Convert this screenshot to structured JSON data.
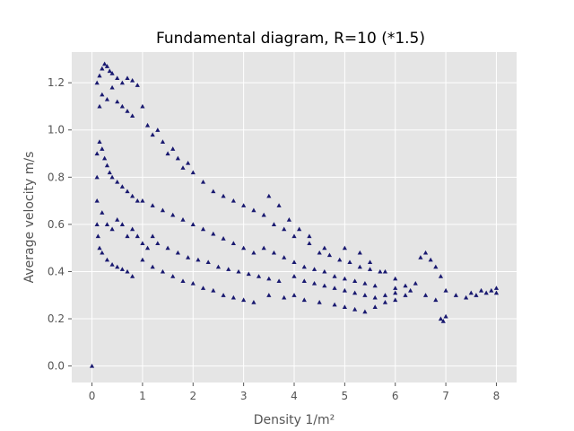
{
  "chart_data": {
    "type": "scatter",
    "title": "Fundamental diagram, R=10 (*1.5)",
    "xlabel": "Density 1/m²",
    "ylabel": "Average velocity m/s",
    "xlim": [
      -0.4,
      8.4
    ],
    "ylim": [
      -0.07,
      1.33
    ],
    "xticks": [
      0,
      1,
      2,
      3,
      4,
      5,
      6,
      7,
      8
    ],
    "yticks": [
      0.0,
      0.2,
      0.4,
      0.6,
      0.8,
      1.0,
      1.2
    ],
    "grid": true,
    "marker": "triangle",
    "colors": {
      "marker": "#191970",
      "plot_bg": "#e5e5e5",
      "grid": "#ffffff",
      "tick_text": "#555555"
    },
    "series": [
      {
        "points": [
          [
            0.0,
            0.0
          ],
          [
            0.1,
            1.2
          ],
          [
            0.15,
            1.23
          ],
          [
            0.2,
            1.26
          ],
          [
            0.25,
            1.28
          ],
          [
            0.3,
            1.27
          ],
          [
            0.35,
            1.25
          ],
          [
            0.4,
            1.24
          ],
          [
            0.5,
            1.22
          ],
          [
            0.6,
            1.2
          ],
          [
            0.7,
            1.22
          ],
          [
            0.8,
            1.21
          ],
          [
            0.9,
            1.19
          ],
          [
            0.15,
            1.1
          ],
          [
            0.2,
            1.15
          ],
          [
            0.3,
            1.13
          ],
          [
            0.4,
            1.18
          ],
          [
            0.5,
            1.12
          ],
          [
            0.6,
            1.1
          ],
          [
            0.7,
            1.08
          ],
          [
            0.8,
            1.06
          ],
          [
            1.0,
            1.1
          ],
          [
            1.1,
            1.02
          ],
          [
            1.2,
            0.98
          ],
          [
            1.3,
            1.0
          ],
          [
            1.4,
            0.95
          ],
          [
            1.5,
            0.9
          ],
          [
            1.6,
            0.92
          ],
          [
            1.7,
            0.88
          ],
          [
            1.8,
            0.84
          ],
          [
            1.9,
            0.86
          ],
          [
            2.0,
            0.82
          ],
          [
            2.2,
            0.78
          ],
          [
            2.4,
            0.74
          ],
          [
            2.6,
            0.72
          ],
          [
            2.8,
            0.7
          ],
          [
            3.0,
            0.68
          ],
          [
            3.2,
            0.66
          ],
          [
            3.4,
            0.64
          ],
          [
            3.6,
            0.6
          ],
          [
            3.8,
            0.58
          ],
          [
            4.0,
            0.55
          ],
          [
            4.3,
            0.52
          ],
          [
            4.6,
            0.5
          ],
          [
            5.0,
            0.5
          ],
          [
            5.3,
            0.48
          ],
          [
            5.5,
            0.44
          ],
          [
            5.8,
            0.4
          ],
          [
            6.0,
            0.37
          ],
          [
            0.1,
            0.9
          ],
          [
            0.15,
            0.95
          ],
          [
            0.2,
            0.92
          ],
          [
            0.25,
            0.88
          ],
          [
            0.3,
            0.85
          ],
          [
            0.35,
            0.82
          ],
          [
            0.4,
            0.8
          ],
          [
            0.5,
            0.78
          ],
          [
            0.6,
            0.76
          ],
          [
            0.7,
            0.74
          ],
          [
            0.8,
            0.72
          ],
          [
            0.9,
            0.7
          ],
          [
            0.1,
            0.8
          ],
          [
            0.1,
            0.7
          ],
          [
            0.1,
            0.6
          ],
          [
            0.12,
            0.55
          ],
          [
            0.15,
            0.5
          ],
          [
            0.2,
            0.48
          ],
          [
            0.3,
            0.45
          ],
          [
            0.4,
            0.43
          ],
          [
            0.5,
            0.42
          ],
          [
            0.6,
            0.41
          ],
          [
            0.7,
            0.4
          ],
          [
            0.8,
            0.38
          ],
          [
            0.2,
            0.65
          ],
          [
            0.3,
            0.6
          ],
          [
            0.4,
            0.58
          ],
          [
            0.5,
            0.62
          ],
          [
            0.6,
            0.6
          ],
          [
            0.7,
            0.55
          ],
          [
            0.8,
            0.58
          ],
          [
            0.9,
            0.55
          ],
          [
            1.0,
            0.52
          ],
          [
            1.1,
            0.5
          ],
          [
            1.2,
            0.55
          ],
          [
            1.3,
            0.52
          ],
          [
            1.0,
            0.7
          ],
          [
            1.2,
            0.68
          ],
          [
            1.4,
            0.66
          ],
          [
            1.6,
            0.64
          ],
          [
            1.8,
            0.62
          ],
          [
            2.0,
            0.6
          ],
          [
            2.2,
            0.58
          ],
          [
            2.4,
            0.56
          ],
          [
            2.6,
            0.54
          ],
          [
            2.8,
            0.52
          ],
          [
            3.0,
            0.5
          ],
          [
            3.2,
            0.48
          ],
          [
            1.0,
            0.45
          ],
          [
            1.2,
            0.42
          ],
          [
            1.4,
            0.4
          ],
          [
            1.6,
            0.38
          ],
          [
            1.8,
            0.36
          ],
          [
            2.0,
            0.35
          ],
          [
            2.2,
            0.33
          ],
          [
            2.4,
            0.32
          ],
          [
            2.6,
            0.3
          ],
          [
            2.8,
            0.29
          ],
          [
            3.0,
            0.28
          ],
          [
            3.2,
            0.27
          ],
          [
            1.5,
            0.5
          ],
          [
            1.7,
            0.48
          ],
          [
            1.9,
            0.46
          ],
          [
            2.1,
            0.45
          ],
          [
            2.3,
            0.44
          ],
          [
            2.5,
            0.42
          ],
          [
            2.7,
            0.41
          ],
          [
            2.9,
            0.4
          ],
          [
            3.1,
            0.39
          ],
          [
            3.3,
            0.38
          ],
          [
            3.5,
            0.37
          ],
          [
            3.7,
            0.36
          ],
          [
            3.4,
            0.5
          ],
          [
            3.6,
            0.48
          ],
          [
            3.8,
            0.46
          ],
          [
            4.0,
            0.44
          ],
          [
            4.2,
            0.42
          ],
          [
            4.4,
            0.41
          ],
          [
            4.6,
            0.4
          ],
          [
            4.8,
            0.38
          ],
          [
            5.0,
            0.37
          ],
          [
            5.2,
            0.36
          ],
          [
            5.4,
            0.35
          ],
          [
            5.6,
            0.34
          ],
          [
            3.5,
            0.3
          ],
          [
            3.8,
            0.29
          ],
          [
            4.0,
            0.3
          ],
          [
            4.2,
            0.28
          ],
          [
            4.5,
            0.27
          ],
          [
            4.8,
            0.26
          ],
          [
            5.0,
            0.25
          ],
          [
            5.2,
            0.24
          ],
          [
            5.4,
            0.23
          ],
          [
            5.6,
            0.25
          ],
          [
            5.8,
            0.27
          ],
          [
            6.0,
            0.28
          ],
          [
            4.0,
            0.38
          ],
          [
            4.2,
            0.36
          ],
          [
            4.4,
            0.35
          ],
          [
            4.6,
            0.34
          ],
          [
            4.8,
            0.33
          ],
          [
            5.0,
            0.32
          ],
          [
            5.2,
            0.31
          ],
          [
            5.4,
            0.3
          ],
          [
            5.6,
            0.29
          ],
          [
            5.8,
            0.3
          ],
          [
            6.0,
            0.31
          ],
          [
            6.2,
            0.3
          ],
          [
            6.0,
            0.33
          ],
          [
            6.2,
            0.34
          ],
          [
            6.4,
            0.35
          ],
          [
            6.5,
            0.46
          ],
          [
            6.6,
            0.48
          ],
          [
            6.7,
            0.45
          ],
          [
            6.8,
            0.42
          ],
          [
            6.9,
            0.38
          ],
          [
            7.0,
            0.32
          ],
          [
            7.2,
            0.3
          ],
          [
            7.4,
            0.29
          ],
          [
            7.6,
            0.3
          ],
          [
            6.3,
            0.32
          ],
          [
            6.6,
            0.3
          ],
          [
            6.8,
            0.28
          ],
          [
            6.9,
            0.2
          ],
          [
            6.95,
            0.19
          ],
          [
            7.0,
            0.21
          ],
          [
            7.8,
            0.31
          ],
          [
            7.9,
            0.32
          ],
          [
            8.0,
            0.33
          ],
          [
            8.0,
            0.31
          ],
          [
            7.7,
            0.32
          ],
          [
            7.5,
            0.31
          ],
          [
            3.5,
            0.72
          ],
          [
            3.7,
            0.68
          ],
          [
            3.9,
            0.62
          ],
          [
            4.1,
            0.58
          ],
          [
            4.3,
            0.55
          ],
          [
            4.5,
            0.48
          ],
          [
            4.7,
            0.47
          ],
          [
            4.9,
            0.45
          ],
          [
            5.1,
            0.44
          ],
          [
            5.3,
            0.42
          ],
          [
            5.5,
            0.41
          ],
          [
            5.7,
            0.4
          ]
        ]
      }
    ]
  }
}
